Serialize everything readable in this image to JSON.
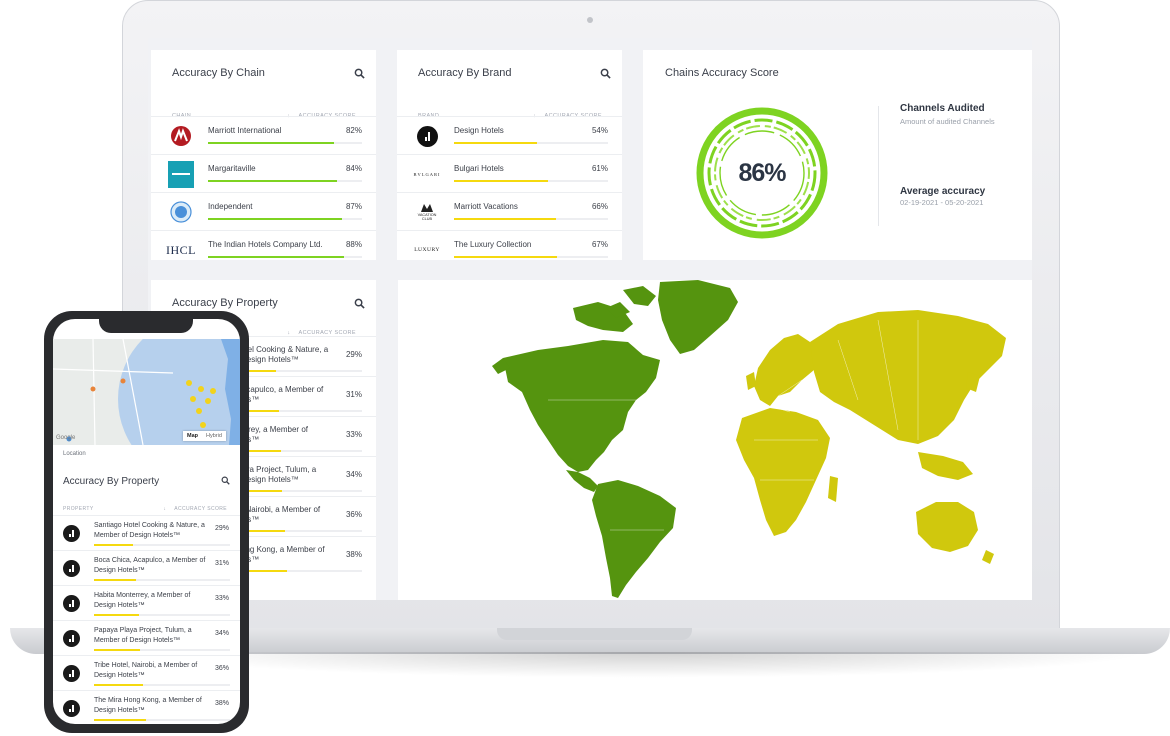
{
  "colors": {
    "green": "#7ed321",
    "yellow": "#f5d90f",
    "map_green": "#55940f",
    "map_yellow": "#d0c80d"
  },
  "chain_card": {
    "title": "Accuracy By Chain",
    "col_left": "CHAIN",
    "col_right": "ACCURACY SCORE",
    "rows": [
      {
        "name": "Marriott International",
        "pct": "82%",
        "value": 0.82,
        "logo": "marriott-logo"
      },
      {
        "name": "Margaritaville",
        "pct": "84%",
        "value": 0.84,
        "logo": "margaritaville-logo"
      },
      {
        "name": "Independent",
        "pct": "87%",
        "value": 0.87,
        "logo": "independent-logo"
      },
      {
        "name": "The Indian Hotels Company Ltd.",
        "pct": "88%",
        "value": 0.88,
        "logo": "ihcl-logo",
        "logo_text": "IHCL"
      }
    ]
  },
  "brand_card": {
    "title": "Accuracy By Brand",
    "col_left": "BRAND",
    "col_right": "ACCURACY SCORE",
    "rows": [
      {
        "name": "Design Hotels",
        "pct": "54%",
        "value": 0.54,
        "logo": "design-hotels-logo"
      },
      {
        "name": "Bulgari Hotels",
        "pct": "61%",
        "value": 0.61,
        "logo": "bulgari-logo",
        "logo_text": "BVLGARI"
      },
      {
        "name": "Marriott Vacations",
        "pct": "66%",
        "value": 0.66,
        "logo": "marriott-vacation-club-logo",
        "logo_text": "VACATION CLUB"
      },
      {
        "name": "The Luxury Collection",
        "pct": "67%",
        "value": 0.67,
        "logo": "luxury-collection-logo",
        "logo_text": "LUXURY"
      }
    ]
  },
  "score_card": {
    "title": "Chains Accuracy Score",
    "value": "86%",
    "channels_title": "Channels Audited",
    "channels_sub": "Amount of audited Channels",
    "avg_title": "Average accuracy",
    "avg_range": "02-19-2021 - 05-20-2021"
  },
  "property_card": {
    "title": "Accuracy By Property",
    "col_right": "ACCURACY SCORE",
    "rows": [
      {
        "name": "otel Cooking & Nature, a",
        "name2": "Design Hotels™",
        "pct": "29%",
        "value": 0.29
      },
      {
        "name": "Acapulco, a Member of",
        "name2": "els™",
        "pct": "31%",
        "value": 0.31
      },
      {
        "name": "errey, a Member of",
        "name2": "els™",
        "pct": "33%",
        "value": 0.33
      },
      {
        "name": "aya Project, Tulum, a",
        "name2": "Design Hotels™",
        "pct": "34%",
        "value": 0.34
      },
      {
        "name": ", Nairobi, a Member of",
        "name2": "els™",
        "pct": "36%",
        "value": 0.36
      },
      {
        "name": "ong Kong, a Member of",
        "name2": "els™",
        "pct": "38%",
        "value": 0.38
      }
    ]
  },
  "phone": {
    "map_label": "Location",
    "map_btn_map": "Map",
    "map_btn_hybrid": "Hybrid",
    "google": "Google",
    "title": "Accuracy By Property",
    "col_left": "PROPERTY",
    "col_right": "ACCURACY SCORE",
    "rows": [
      {
        "name": "Santiago Hotel Cooking & Nature, a Member of Design Hotels™",
        "pct": "29%",
        "value": 0.29
      },
      {
        "name": "Boca Chica, Acapulco, a Member of Design Hotels™",
        "pct": "31%",
        "value": 0.31
      },
      {
        "name": "Habita Monterrey, a Member of Design Hotels™",
        "pct": "33%",
        "value": 0.33
      },
      {
        "name": "Papaya Playa Project, Tulum, a Member of Design Hotels™",
        "pct": "34%",
        "value": 0.34
      },
      {
        "name": "Tribe Hotel, Nairobi, a Member of Design Hotels™",
        "pct": "36%",
        "value": 0.36
      },
      {
        "name": "The Mira Hong Kong, a Member of Design Hotels™",
        "pct": "38%",
        "value": 0.38
      }
    ]
  }
}
